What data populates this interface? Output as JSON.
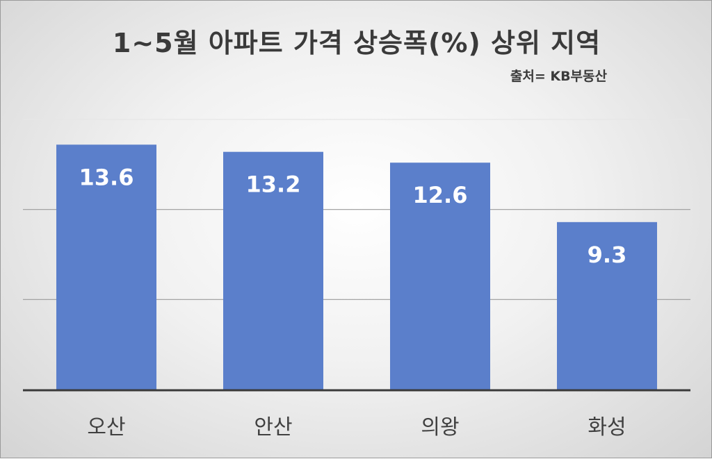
{
  "chart_data": {
    "type": "bar",
    "title": "1~5월 아파트 가격 상승폭(%) 상위 지역",
    "source": "출처= KB부동산",
    "categories": [
      "오산",
      "안산",
      "의왕",
      "화성"
    ],
    "values": [
      13.6,
      13.2,
      12.6,
      9.3
    ],
    "ylim": [
      0,
      15
    ],
    "grid": true,
    "bar_color": "#5b7fcb",
    "gridline_color": "#9a9a9a"
  }
}
